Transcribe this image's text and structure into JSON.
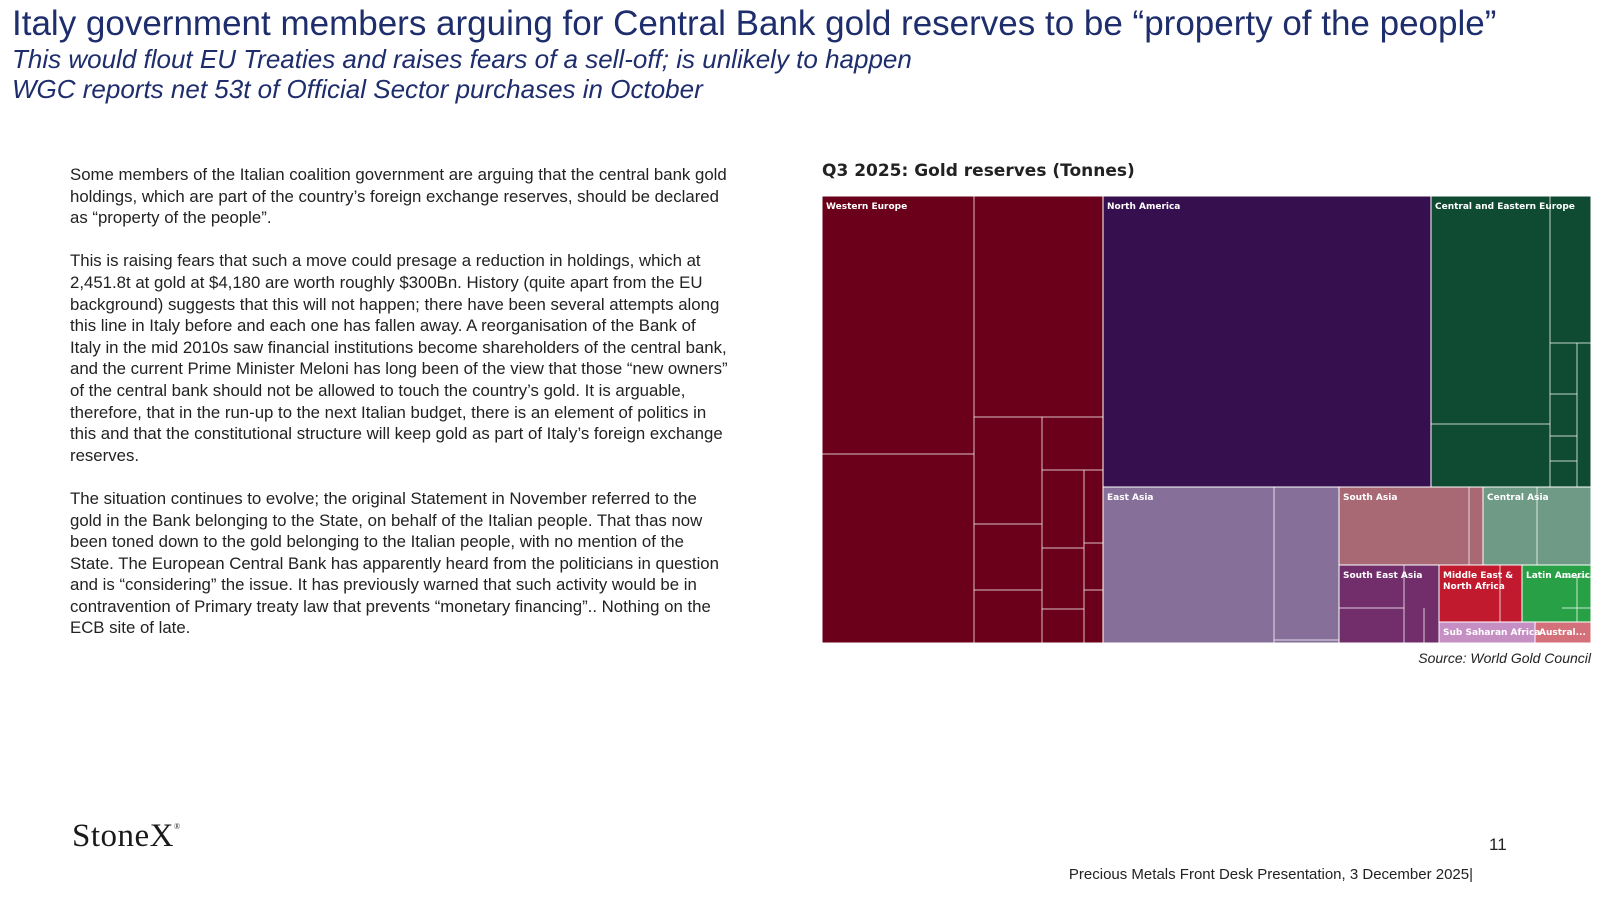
{
  "header": {
    "title": "Italy government members arguing for Central Bank gold reserves to be “property of the people”",
    "subtitle_1": "This would flout EU Treaties and raises fears of a sell-off; is unlikely to happen",
    "subtitle_2": "WGC reports net 53t of Official Sector purchases in October"
  },
  "body": {
    "paragraph_1": "Some members of the Italian coalition government are arguing that the central bank gold holdings, which are part of the country’s foreign exchange reserves, should be declared as “property of the people”.",
    "paragraph_2": "This is raising fears that such a move could presage a reduction in holdings, which at 2,451.8t at gold at $4,180 are worth roughly $300Bn.  History (quite apart from the EU background) suggests that this will not happen; there have been several attempts along this line in Italy before and each one has fallen away.  A reorganisation of the Bank of Italy in the mid 2010s saw financial institutions become shareholders of the central bank, and the current Prime Minister Meloni has long been of the view that those “new owners” of the central bank should not be allowed to touch the country’s gold.  It is arguable, therefore, that in the run-up to the next Italian budget, there is an element of politics in this and that the constitutional structure will keep gold as part of Italy’s foreign exchange reserves.",
    "paragraph_3": "The situation continues to evolve;  the original Statement  in November referred to the gold in the Bank belonging to the State, on behalf of the Italian people.  That thas now been toned down to the gold belonging  to the Italian people, with no mention of the State.  The European Central Bank has apparently heard from the politicians in question and is “considering” the issue.   It has previously warned that such activity would be in contravention of Primary treaty law that prevents “monetary financing”.. Nothing on the ECB site of late."
  },
  "chart_data": {
    "type": "treemap",
    "title": "Q3 2025: Gold reserves (Tonnes)",
    "source": "Source: World Gold Council",
    "regions": [
      {
        "name": "Western Europe",
        "color": "#6a0019",
        "value": 10800
      },
      {
        "name": "North America",
        "color": "#36104e",
        "value": 8200
      },
      {
        "name": "Central and Eastern Europe",
        "color": "#0f4a33",
        "value": 3700
      },
      {
        "name": "East Asia",
        "color": "#86709a",
        "value": 3000
      },
      {
        "name": "South Asia",
        "color": "#a86874",
        "value": 1150
      },
      {
        "name": "Central Asia",
        "color": "#6f9a86",
        "value": 860
      },
      {
        "name": "South East Asia",
        "color": "#712e6b",
        "value": 800
      },
      {
        "name": "Middle East & North Africa",
        "color": "#c11a2e",
        "value": 650
      },
      {
        "name": "Latin America...",
        "color": "#28a046",
        "value": 560
      },
      {
        "name": "Sub Saharan Africa",
        "color": "#c58fc4",
        "value": 210
      },
      {
        "name": "Austral...",
        "color": "#d4707a",
        "value": 120
      }
    ]
  },
  "footer": {
    "logo_text": "StoneX",
    "logo_mark": "®",
    "page_number": "11",
    "presentation": "Precious Metals Front Desk Presentation, 3 December 2025|"
  }
}
